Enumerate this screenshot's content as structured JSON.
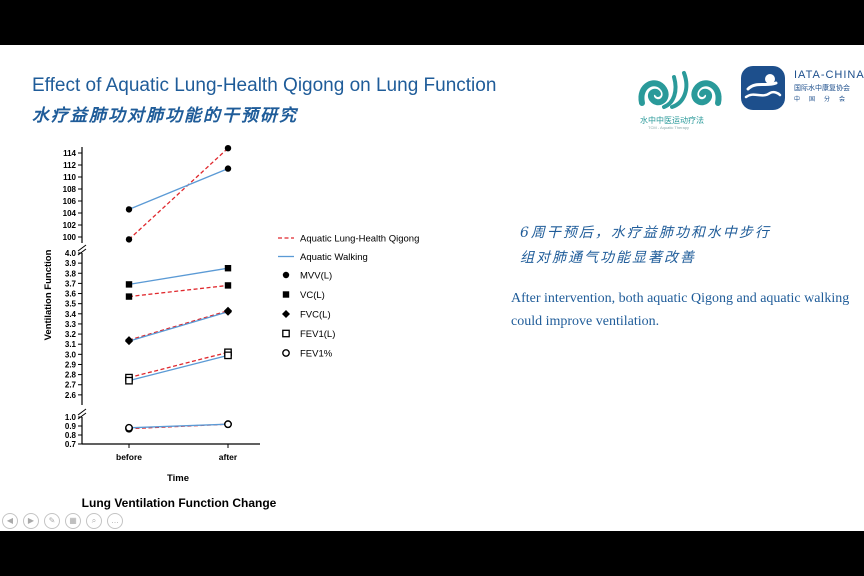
{
  "slide": {
    "title_en": "Effect of Aquatic Lung-Health Qigong on Lung Function",
    "title_cn": "水疗益肺功对肺功能的干预研究",
    "note_cn_line1": "6周干预后，水疗益肺功和水中步行",
    "note_cn_line2": "组对肺通气功能显著改善",
    "note_en": "After intervention, both aquatic Qigong and aquatic walking could improve ventilation."
  },
  "logos": {
    "left_text": "水中中医运动疗法",
    "left_sub": "TCM - Aquatic Therapy",
    "right_name": "IATA-CHINA",
    "right_cn": "国际水中康复协会",
    "right_cn2": "中国分会"
  },
  "colors": {
    "title": "#1f5c99",
    "qigong": "#e0282d",
    "walking": "#5b9ad5",
    "logo_teal": "#2a9a9a",
    "logo_blue": "#1d4f8c"
  },
  "chart_data": {
    "type": "line",
    "title": "Lung Ventilation Function Change",
    "xlabel": "Time",
    "ylabel": "Ventilation Function",
    "categories": [
      "before",
      "after"
    ],
    "segments": [
      {
        "range": [
          0.7,
          1.0
        ],
        "ticks": [
          "0.7",
          "0.8",
          "0.9",
          "1.0"
        ],
        "tick_values": [
          0.7,
          0.8,
          0.9,
          1.0
        ]
      },
      {
        "range": [
          2.5,
          4.0
        ],
        "ticks": [
          "2.6",
          "2.7",
          "2.8",
          "2.9",
          "3.0",
          "3.1",
          "3.2",
          "3.3",
          "3.4",
          "3.5",
          "3.6",
          "3.7",
          "3.8",
          "3.9",
          "4.0"
        ],
        "tick_values": [
          2.6,
          2.7,
          2.8,
          2.9,
          3.0,
          3.1,
          3.2,
          3.3,
          3.4,
          3.5,
          3.6,
          3.7,
          3.8,
          3.9,
          4.0
        ]
      },
      {
        "range": [
          99,
          115
        ],
        "ticks": [
          "100",
          "102",
          "104",
          "106",
          "108",
          "110",
          "112",
          "114"
        ],
        "tick_values": [
          100,
          102,
          104,
          106,
          108,
          110,
          112,
          114
        ]
      }
    ],
    "legend": {
      "position": "right",
      "lines": [
        {
          "label": "Aquatic Lung-Health Qigong",
          "style": "dashed",
          "group": "qigong"
        },
        {
          "label": "Aquatic Walking",
          "style": "solid",
          "group": "walking"
        }
      ],
      "markers": [
        {
          "label": "MVV(L)",
          "marker": "filled-circle"
        },
        {
          "label": "VC(L)",
          "marker": "filled-square"
        },
        {
          "label": "FVC(L)",
          "marker": "filled-diamond"
        },
        {
          "label": "FEV1(L)",
          "marker": "open-square"
        },
        {
          "label": "FEV1%",
          "marker": "open-circle"
        }
      ]
    },
    "series": [
      {
        "name": "MVV(L) - Aquatic Lung-Health Qigong",
        "group": "qigong",
        "marker": "filled-circle",
        "values": [
          99.6,
          114.8
        ]
      },
      {
        "name": "MVV(L) - Aquatic Walking",
        "group": "walking",
        "marker": "filled-circle",
        "values": [
          104.6,
          111.4
        ]
      },
      {
        "name": "VC(L) - Aquatic Lung-Health Qigong",
        "group": "qigong",
        "marker": "filled-square",
        "values": [
          3.57,
          3.68
        ]
      },
      {
        "name": "VC(L) - Aquatic Walking",
        "group": "walking",
        "marker": "filled-square",
        "values": [
          3.69,
          3.85
        ]
      },
      {
        "name": "FVC(L) - Aquatic Lung-Health Qigong",
        "group": "qigong",
        "marker": "filled-diamond",
        "values": [
          3.14,
          3.43
        ]
      },
      {
        "name": "FVC(L) - Aquatic Walking",
        "group": "walking",
        "marker": "filled-diamond",
        "values": [
          3.13,
          3.42
        ]
      },
      {
        "name": "FEV1(L) - Aquatic Lung-Health Qigong",
        "group": "qigong",
        "marker": "open-square",
        "values": [
          2.77,
          3.02
        ]
      },
      {
        "name": "FEV1(L) - Aquatic Walking",
        "group": "walking",
        "marker": "open-square",
        "values": [
          2.74,
          2.99
        ]
      },
      {
        "name": "FEV1% - Aquatic Lung-Health Qigong",
        "group": "qigong",
        "marker": "open-circle",
        "values": [
          0.87,
          0.92
        ]
      },
      {
        "name": "FEV1% - Aquatic Walking",
        "group": "walking",
        "marker": "open-circle",
        "values": [
          0.88,
          0.92
        ]
      }
    ]
  }
}
